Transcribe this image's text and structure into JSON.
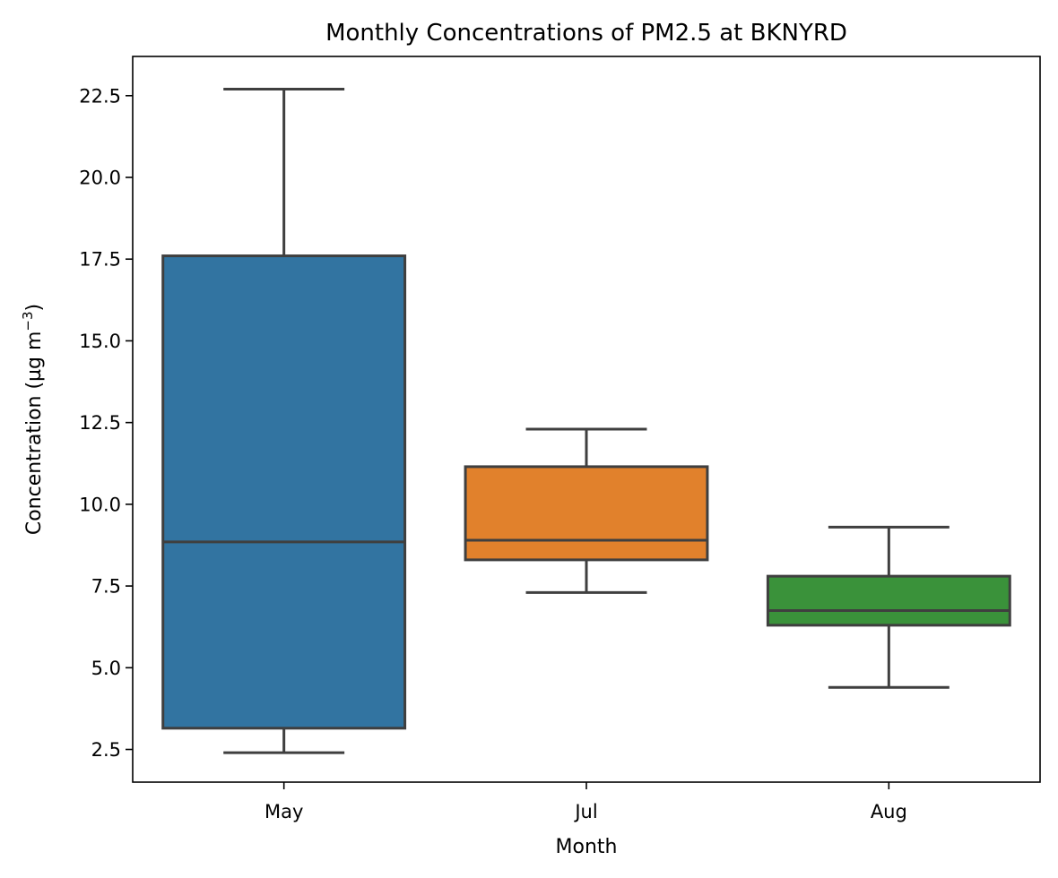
{
  "chart_data": {
    "type": "box",
    "title": "Monthly Concentrations of PM2.5 at BKNYRD",
    "xlabel": "Month",
    "ylabel": {
      "prefix": "Concentration (µg m",
      "superscript": "−3",
      "suffix": ")"
    },
    "ylim": [
      1.5,
      23.7
    ],
    "yticks": [
      2.5,
      5.0,
      7.5,
      10.0,
      12.5,
      15.0,
      17.5,
      20.0,
      22.5
    ],
    "ytick_labels": [
      "2.5",
      "5.0",
      "7.5",
      "10.0",
      "12.5",
      "15.0",
      "17.5",
      "20.0",
      "22.5"
    ],
    "grid": false,
    "categories": [
      "May",
      "Jul",
      "Aug"
    ],
    "boxes": [
      {
        "category": "May",
        "whisker_low": 2.4,
        "q1": 3.15,
        "median": 8.85,
        "q3": 17.6,
        "whisker_high": 22.7,
        "color": "#3274a1"
      },
      {
        "category": "Jul",
        "whisker_low": 7.3,
        "q1": 8.3,
        "median": 8.9,
        "q3": 11.15,
        "whisker_high": 12.3,
        "color": "#e1812c"
      },
      {
        "category": "Aug",
        "whisker_low": 4.4,
        "q1": 6.3,
        "median": 6.75,
        "q3": 7.8,
        "whisker_high": 9.3,
        "color": "#3a923a"
      }
    ],
    "line_color": "#3f3f3f"
  }
}
